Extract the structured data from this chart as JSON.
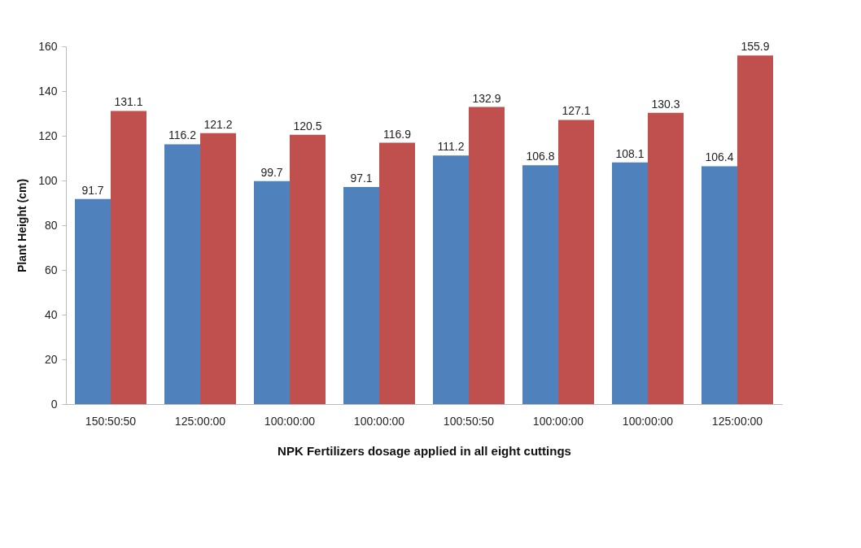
{
  "chart_data": {
    "type": "bar",
    "xlabel": "NPK Fertilizers dosage applied in all eight cuttings",
    "ylabel": "Plant Height (cm)",
    "categories": [
      "150:50:50",
      "125:00:00",
      "100:00:00",
      "100:00:00",
      "100:50:50",
      "100:00:00",
      "100:00:00",
      "125:00:00"
    ],
    "series": [
      {
        "color": "#4f81bd",
        "values": [
          91.7,
          116.2,
          99.7,
          97.1,
          111.2,
          106.8,
          108.1,
          106.4
        ]
      },
      {
        "color": "#c0504d",
        "values": [
          131.1,
          121.2,
          120.5,
          116.9,
          132.9,
          127.1,
          130.3,
          155.9
        ]
      }
    ],
    "ylim": [
      0,
      160
    ],
    "yticks": [
      0,
      20,
      40,
      60,
      80,
      100,
      120,
      140,
      160
    ],
    "grid": false,
    "legend": false,
    "data_labels": true
  }
}
